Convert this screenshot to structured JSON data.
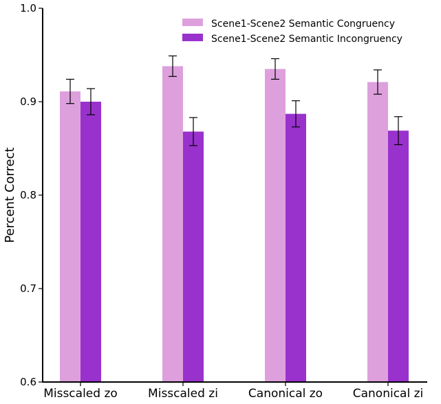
{
  "chart_data": {
    "type": "bar",
    "title": "",
    "xlabel": "",
    "ylabel": "Percent Correct",
    "ylim": [
      0.6,
      1.0
    ],
    "yticks": [
      "0.6",
      "0.7",
      "0.8",
      "0.9",
      "1.0"
    ],
    "categories": [
      "Misscaled zo",
      "Misscaled zi",
      "Canonical zo",
      "Canonical zi"
    ],
    "series": [
      {
        "name": "Scene1-Scene2 Semantic Congruency",
        "color": "#dda0dd",
        "values": [
          0.911,
          0.938,
          0.935,
          0.921
        ],
        "errors": [
          0.013,
          0.011,
          0.011,
          0.013
        ]
      },
      {
        "name": "Scene1-Scene2 Semantic Incongruency",
        "color": "#9932cc",
        "values": [
          0.9,
          0.868,
          0.887,
          0.869
        ],
        "errors": [
          0.014,
          0.015,
          0.014,
          0.015
        ]
      }
    ],
    "grid": false,
    "legend_position": "top-right"
  }
}
